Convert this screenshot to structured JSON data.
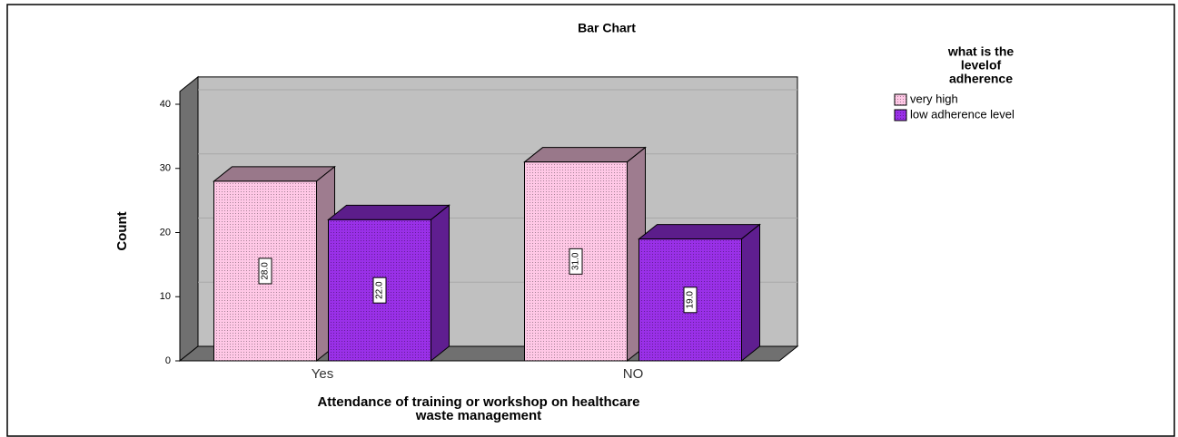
{
  "chart_data": {
    "type": "bar3d",
    "title": "Bar Chart",
    "categories": [
      "Yes",
      "NO"
    ],
    "series": [
      {
        "name": "very high",
        "color": "#ffc8e6",
        "values": [
          28,
          31
        ],
        "value_labels": [
          "28.0",
          "31.0"
        ]
      },
      {
        "name": "low adherence level",
        "color": "#9a30e8",
        "values": [
          22,
          19
        ],
        "value_labels": [
          "22.0",
          "19.0"
        ]
      }
    ],
    "ylim": [
      0,
      42
    ],
    "yticks": [
      0,
      10,
      20,
      30,
      40
    ],
    "grid": true,
    "ylabel": "Count",
    "xlabel": [
      "Attendance of training or workshop on healthcare",
      "waste management"
    ],
    "legend_title": [
      "what is the",
      "levelof",
      "adherence"
    ],
    "legend_position": "top-right"
  }
}
